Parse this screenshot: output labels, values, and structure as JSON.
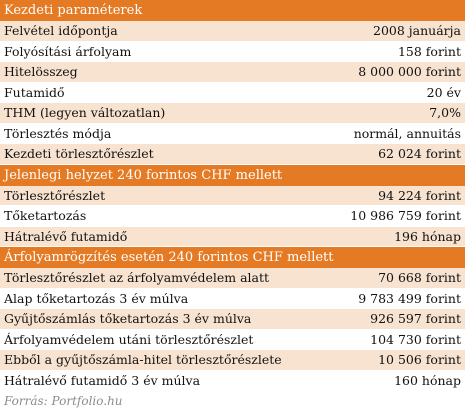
{
  "colors": {
    "header": "#e47a24",
    "stripe": "#f8e3d0",
    "source_text": "#8c8c8c"
  },
  "sections": [
    {
      "title": "Kezdeti paraméterek",
      "rows": [
        {
          "label": "Felvétel időpontja",
          "value": "2008 januárja"
        },
        {
          "label": "Folyósítási árfolyam",
          "value": "158 forint"
        },
        {
          "label": "Hitelösszeg",
          "value": "8 000 000 forint"
        },
        {
          "label": "Futamidő",
          "value": "20 év"
        },
        {
          "label": "THM (legyen változatlan)",
          "value": "7,0%"
        },
        {
          "label": "Törlesztés módja",
          "value": "normál, annuitás"
        },
        {
          "label": "Kezdeti törlesztőrészlet",
          "value": "62 024 forint"
        }
      ]
    },
    {
      "title": "Jelenlegi helyzet 240 forintos CHF mellett",
      "rows": [
        {
          "label": "Törlesztőrészlet",
          "value": "94 224 forint"
        },
        {
          "label": "Tőketartozás",
          "value": "10 986 759 forint"
        },
        {
          "label": "Hátralévő futamidő",
          "value": "196 hónap"
        }
      ]
    },
    {
      "title": "Árfolyamrögzítés esetén 240 forintos CHF mellett",
      "rows": [
        {
          "label": "Törlesztőrészlet az árfolyamvédelem alatt",
          "value": "70 668 forint"
        },
        {
          "label": "Alap tőketartozás 3 év múlva",
          "value": "9 783 499 forint"
        },
        {
          "label": "Gyűjtőszámlás tőketartozás 3 év múlva",
          "value": "926 597 forint"
        },
        {
          "label": "Árfolyamvédelem utáni törlesztőrészlet",
          "value": "104 730 forint"
        },
        {
          "label": "Ebből a gyűjtőszámla-hitel törlesztőrészlete",
          "value": "10 506 forint"
        },
        {
          "label": "Hátralévő futamidő 3 év múlva",
          "value": "160 hónap"
        }
      ]
    }
  ],
  "source": "Forrás: Portfolio.hu"
}
